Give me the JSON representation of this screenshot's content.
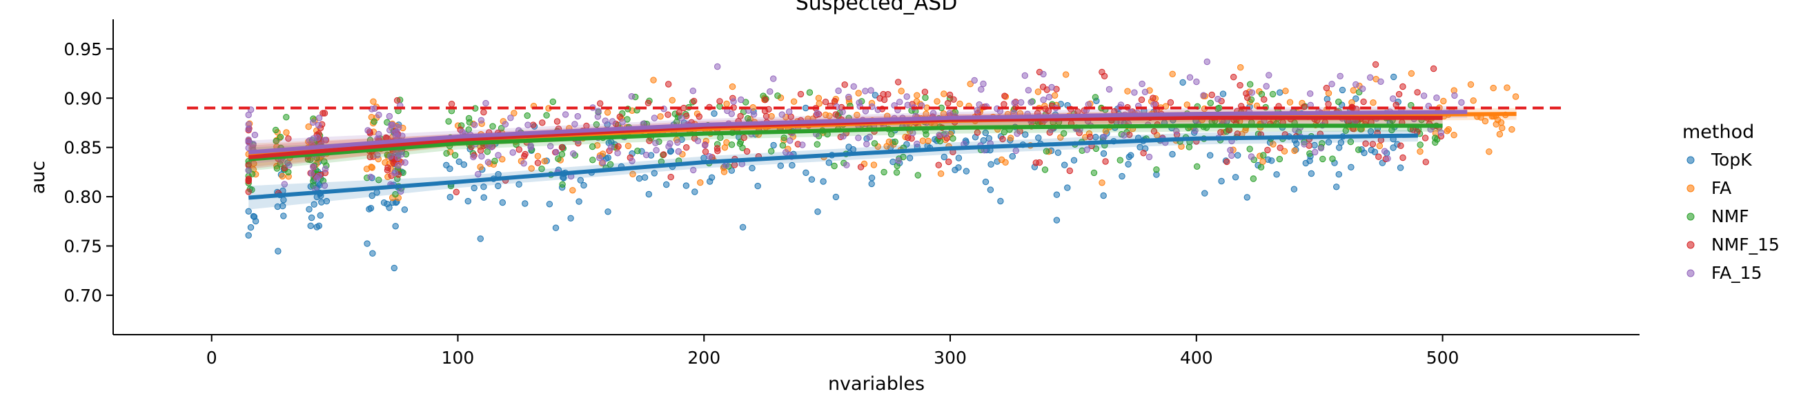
{
  "chart_data": {
    "type": "scatter",
    "title": "Suspected_ASD",
    "xlabel": "nvariables",
    "ylabel": "auc",
    "xlim": [
      -40,
      580
    ],
    "ylim": [
      0.66,
      0.98
    ],
    "xticks": [
      0,
      100,
      200,
      300,
      400,
      500
    ],
    "yticks": [
      0.7,
      0.75,
      0.8,
      0.85,
      0.9,
      0.95
    ],
    "xtick_labels": [
      "0",
      "100",
      "200",
      "300",
      "400",
      "500"
    ],
    "ytick_labels": [
      "0.70",
      "0.75",
      "0.80",
      "0.85",
      "0.90",
      "0.95"
    ],
    "grid": false,
    "legend_placement": "right",
    "legend_title": "method",
    "reference_line": {
      "y": 0.89,
      "x_range": [
        -10,
        550
      ],
      "color": "#e31a1c",
      "style": "dashed"
    },
    "series": [
      {
        "name": "TopK",
        "color": "#1f77b4",
        "x_range": [
          15,
          490
        ],
        "y_range": [
          0.68,
          0.93
        ],
        "fit": [
          [
            15,
            0.799
          ],
          [
            100,
            0.815
          ],
          [
            200,
            0.835
          ],
          [
            300,
            0.849
          ],
          [
            400,
            0.859
          ],
          [
            490,
            0.862
          ]
        ]
      },
      {
        "name": "FA",
        "color": "#ff7f0e",
        "x_range": [
          15,
          530
        ],
        "y_range": [
          0.74,
          0.96
        ],
        "fit": [
          [
            15,
            0.842
          ],
          [
            100,
            0.857
          ],
          [
            200,
            0.869
          ],
          [
            300,
            0.877
          ],
          [
            400,
            0.882
          ],
          [
            530,
            0.884
          ]
        ]
      },
      {
        "name": "NMF",
        "color": "#2ca02c",
        "x_range": [
          15,
          500
        ],
        "y_range": [
          0.7,
          0.95
        ],
        "fit": [
          [
            15,
            0.838
          ],
          [
            100,
            0.854
          ],
          [
            200,
            0.864
          ],
          [
            300,
            0.87
          ],
          [
            400,
            0.872
          ],
          [
            500,
            0.872
          ]
        ]
      },
      {
        "name": "NMF_15",
        "color": "#d62728",
        "x_range": [
          15,
          500
        ],
        "y_range": [
          0.72,
          0.95
        ],
        "fit": [
          [
            15,
            0.84
          ],
          [
            100,
            0.858
          ],
          [
            200,
            0.871
          ],
          [
            300,
            0.878
          ],
          [
            400,
            0.88
          ],
          [
            500,
            0.88
          ]
        ]
      },
      {
        "name": "FA_15",
        "color": "#9467bd",
        "x_range": [
          15,
          510
        ],
        "y_range": [
          0.75,
          0.96
        ],
        "fit": [
          [
            15,
            0.845
          ],
          [
            100,
            0.861
          ],
          [
            200,
            0.873
          ],
          [
            300,
            0.88
          ],
          [
            400,
            0.884
          ],
          [
            510,
            0.886
          ]
        ]
      }
    ]
  }
}
